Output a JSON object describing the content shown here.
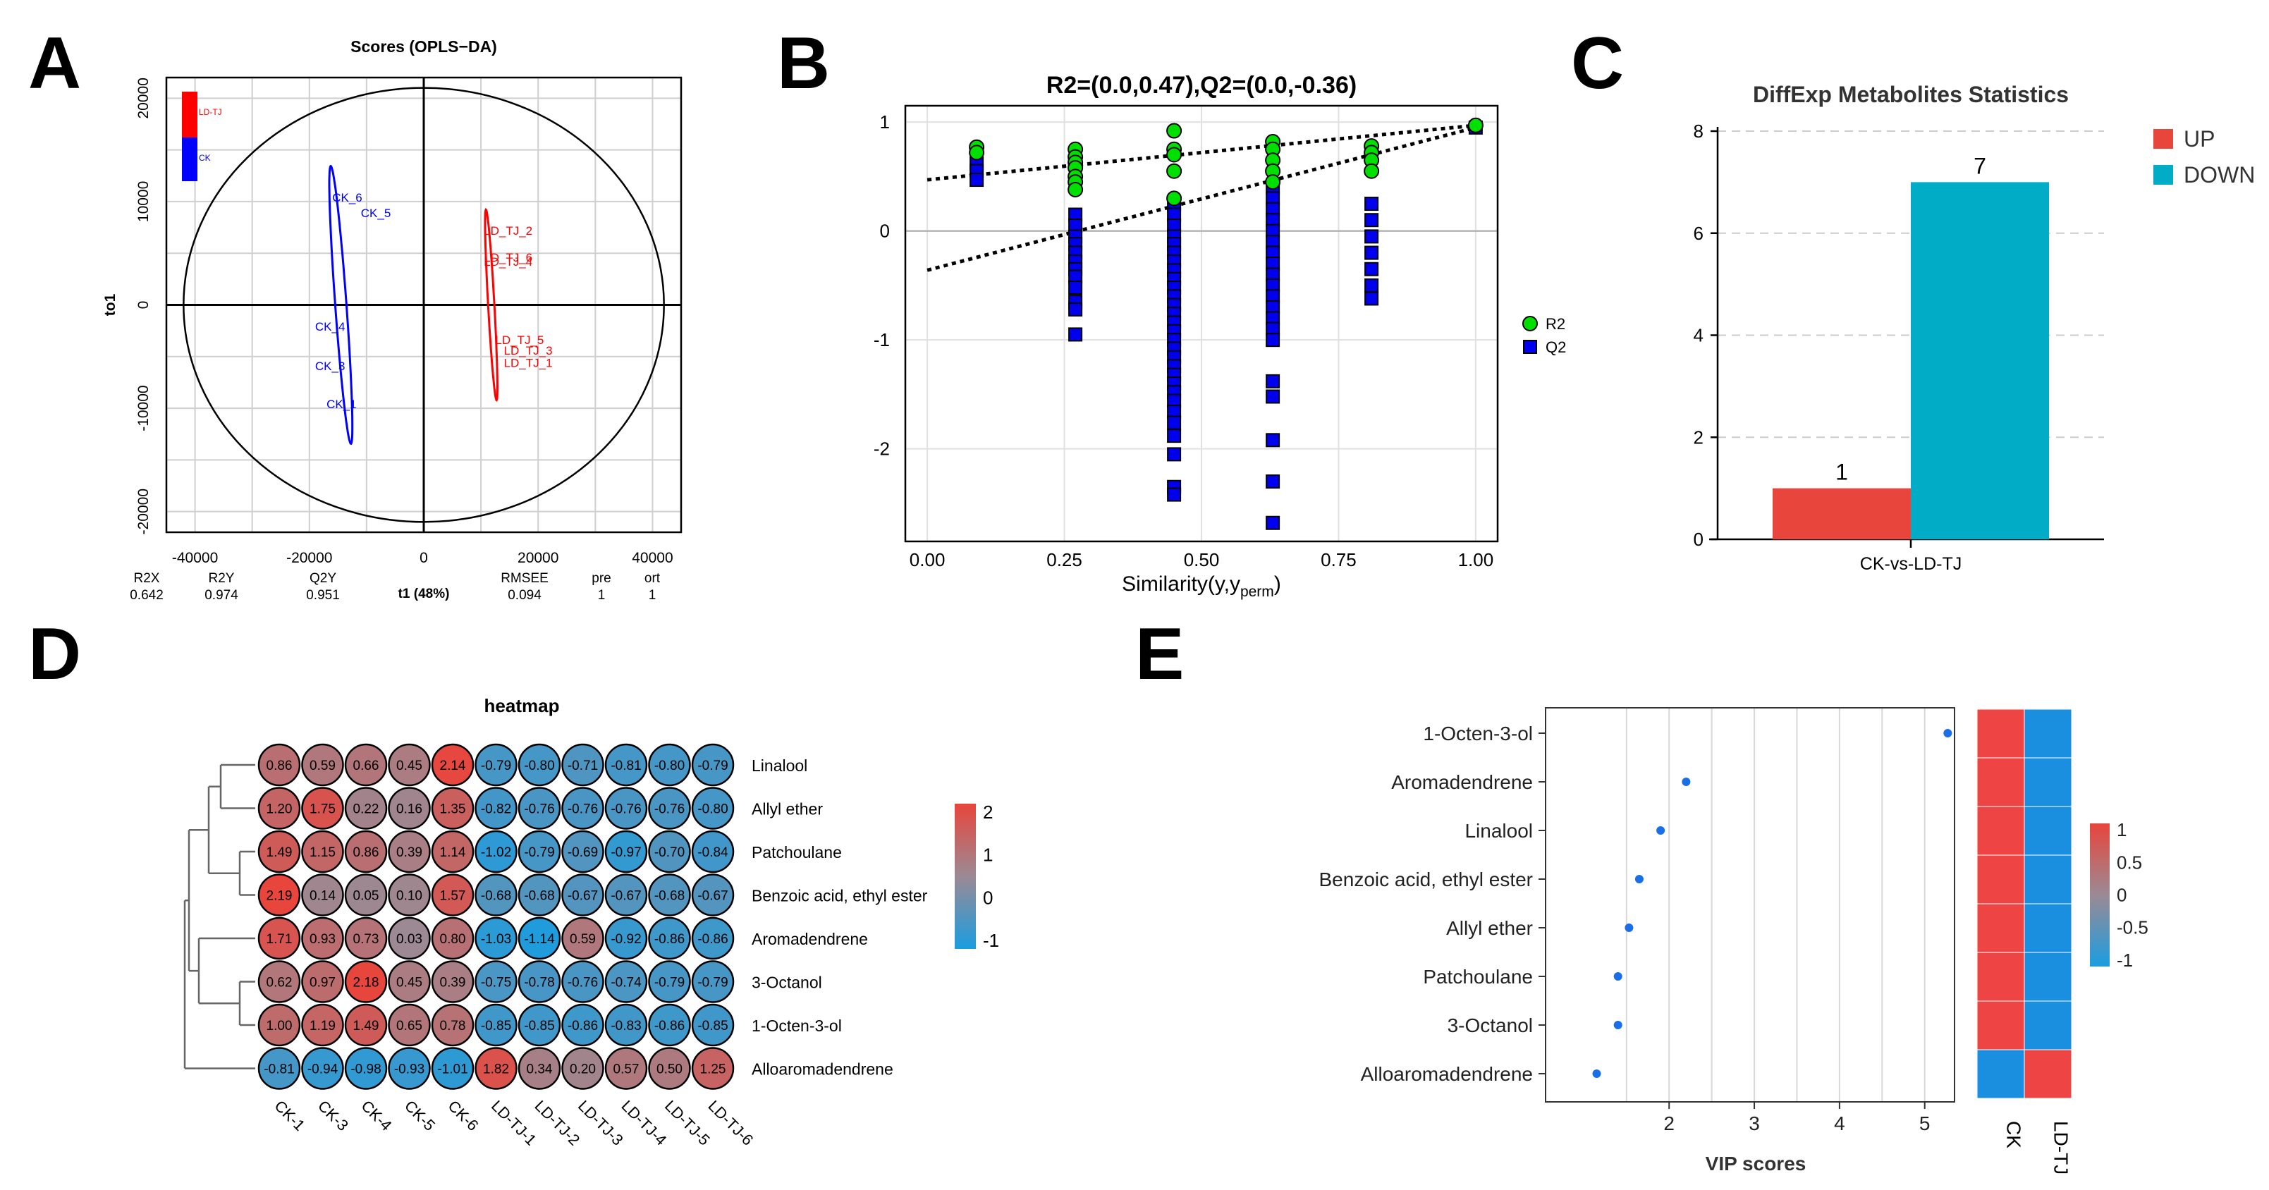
{
  "panel_letters": [
    "A",
    "B",
    "C",
    "D",
    "E"
  ],
  "chart_data": [
    {
      "id": "A",
      "type": "scatter",
      "title": "Scores (OPLS−DA)",
      "xlabel": "t1 (48%)",
      "ylabel": "to1",
      "xlim": [
        -45000,
        45000
      ],
      "ylim": [
        -22000,
        22000
      ],
      "xticks": [
        -40000,
        -20000,
        0,
        20000,
        40000
      ],
      "yticks": [
        -20000,
        -10000,
        0,
        10000,
        20000
      ],
      "grid": true,
      "legend": {
        "placement": "top-left",
        "entries": [
          {
            "name": "LD-TJ",
            "color": "#ff0000"
          },
          {
            "name": "CK",
            "color": "#0000ff"
          }
        ]
      },
      "groups": [
        {
          "name": "CK",
          "color": "#0000ff",
          "points": [
            {
              "label": "CK_6",
              "x": -16000,
              "y": 10000
            },
            {
              "label": "CK_5",
              "x": -11000,
              "y": 8500
            },
            {
              "label": "CK_4",
              "x": -19000,
              "y": -2500
            },
            {
              "label": "CK_3",
              "x": -19000,
              "y": -6300
            },
            {
              "label": "CK_1",
              "x": -17000,
              "y": -10000
            }
          ],
          "ellipse": {
            "cx": -14500,
            "cy": 0,
            "rx": 26500,
            "ry": 3200,
            "angle_deg": -77
          }
        },
        {
          "name": "LD-TJ",
          "color": "#ff0000",
          "points": [
            {
              "label": "LD_TJ_2",
              "x": 10500,
              "y": 6800
            },
            {
              "label": "LD_TJ_6",
              "x": 10500,
              "y": 4200
            },
            {
              "label": "LD_TJ_4",
              "x": 10500,
              "y": 3800
            },
            {
              "label": "LD_TJ_5",
              "x": 12500,
              "y": -3800
            },
            {
              "label": "LD_TJ_3",
              "x": 14000,
              "y": -4800
            },
            {
              "label": "LD_TJ_1",
              "x": 14000,
              "y": -6000
            }
          ],
          "ellipse": {
            "cx": 11800,
            "cy": 0,
            "rx": 18000,
            "ry": 1800,
            "angle_deg": -80
          }
        }
      ],
      "hotelling_ellipse": {
        "cx": 0,
        "cy": 0,
        "rx": 42000,
        "ry": 21000
      },
      "stats": {
        "headers": [
          "R2X",
          "R2Y",
          "Q2Y",
          "RMSEE",
          "pre",
          "ort"
        ],
        "values": [
          "0.642",
          "0.974",
          "0.951",
          "0.094",
          "1",
          "1"
        ]
      }
    },
    {
      "id": "B",
      "type": "scatter",
      "title": "R2=(0.0,0.47),Q2=(0.0,-0.36)",
      "xlabel_main": "Similarity(y,y",
      "xlabel_sub": "perm",
      "xlabel_end": ")",
      "ylabel": "",
      "xlim": [
        -0.04,
        1.04
      ],
      "ylim": [
        -2.85,
        1.15
      ],
      "xticks": [
        0.0,
        0.25,
        0.5,
        0.75,
        1.0
      ],
      "xtick_labels": [
        "0.00",
        "0.25",
        "0.50",
        "0.75",
        "1.00"
      ],
      "yticks": [
        1,
        0,
        -1,
        -2
      ],
      "ytick_labels": [
        "1",
        "0",
        "-1",
        "-2"
      ],
      "grid": true,
      "legend": {
        "placement": "right",
        "entries": [
          {
            "name": "R2",
            "color": "#00e000",
            "shape": "circle"
          },
          {
            "name": "Q2",
            "color": "#0000ee",
            "shape": "square"
          }
        ]
      },
      "regression_lines": [
        {
          "name": "R2",
          "intercept": 0.47,
          "slope": 0.5
        },
        {
          "name": "Q2",
          "intercept": -0.36,
          "slope": 1.31
        }
      ],
      "series": [
        {
          "name": "R2",
          "color": "#00e000",
          "shape": "circle",
          "points": [
            [
              0.09,
              0.77
            ],
            [
              0.09,
              0.72
            ],
            [
              0.27,
              0.75
            ],
            [
              0.27,
              0.68
            ],
            [
              0.27,
              0.63
            ],
            [
              0.27,
              0.58
            ],
            [
              0.27,
              0.5
            ],
            [
              0.27,
              0.45
            ],
            [
              0.27,
              0.38
            ],
            [
              0.45,
              0.92
            ],
            [
              0.45,
              0.75
            ],
            [
              0.45,
              0.7
            ],
            [
              0.45,
              0.55
            ],
            [
              0.45,
              0.3
            ],
            [
              0.63,
              0.82
            ],
            [
              0.63,
              0.75
            ],
            [
              0.63,
              0.65
            ],
            [
              0.63,
              0.55
            ],
            [
              0.63,
              0.45
            ],
            [
              0.81,
              0.78
            ],
            [
              0.81,
              0.72
            ],
            [
              0.81,
              0.65
            ],
            [
              0.81,
              0.55
            ],
            [
              1.0,
              0.97
            ]
          ]
        },
        {
          "name": "Q2",
          "color": "#0000ee",
          "shape": "square",
          "points": [
            [
              0.09,
              0.62
            ],
            [
              0.09,
              0.55
            ],
            [
              0.09,
              0.47
            ],
            [
              0.27,
              0.15
            ],
            [
              0.27,
              0.05
            ],
            [
              0.27,
              -0.05
            ],
            [
              0.27,
              -0.12
            ],
            [
              0.27,
              -0.2
            ],
            [
              0.27,
              -0.28
            ],
            [
              0.27,
              -0.35
            ],
            [
              0.27,
              -0.42
            ],
            [
              0.27,
              -0.52
            ],
            [
              0.27,
              -0.65
            ],
            [
              0.27,
              -0.72
            ],
            [
              0.27,
              -0.95
            ],
            [
              0.45,
              0.25
            ],
            [
              0.45,
              0.15
            ],
            [
              0.45,
              0.05
            ],
            [
              0.45,
              -0.05
            ],
            [
              0.45,
              -0.12
            ],
            [
              0.45,
              -0.2
            ],
            [
              0.45,
              -0.28
            ],
            [
              0.45,
              -0.36
            ],
            [
              0.45,
              -0.44
            ],
            [
              0.45,
              -0.52
            ],
            [
              0.45,
              -0.6
            ],
            [
              0.45,
              -0.68
            ],
            [
              0.45,
              -0.76
            ],
            [
              0.45,
              -0.84
            ],
            [
              0.45,
              -0.92
            ],
            [
              0.45,
              -1.0
            ],
            [
              0.45,
              -1.08
            ],
            [
              0.45,
              -1.16
            ],
            [
              0.45,
              -1.24
            ],
            [
              0.45,
              -1.32
            ],
            [
              0.45,
              -1.4
            ],
            [
              0.45,
              -1.48
            ],
            [
              0.45,
              -1.56
            ],
            [
              0.45,
              -1.66
            ],
            [
              0.45,
              -1.76
            ],
            [
              0.45,
              -1.88
            ],
            [
              0.45,
              -2.05
            ],
            [
              0.45,
              -2.35
            ],
            [
              0.45,
              -2.42
            ],
            [
              0.63,
              0.4
            ],
            [
              0.63,
              0.3
            ],
            [
              0.63,
              0.2
            ],
            [
              0.63,
              0.1
            ],
            [
              0.63,
              0.0
            ],
            [
              0.63,
              -0.1
            ],
            [
              0.63,
              -0.2
            ],
            [
              0.63,
              -0.3
            ],
            [
              0.63,
              -0.4
            ],
            [
              0.63,
              -0.5
            ],
            [
              0.63,
              -0.6
            ],
            [
              0.63,
              -0.7
            ],
            [
              0.63,
              -0.8
            ],
            [
              0.63,
              -0.9
            ],
            [
              0.63,
              -1.0
            ],
            [
              0.63,
              -1.38
            ],
            [
              0.63,
              -1.52
            ],
            [
              0.63,
              -1.92
            ],
            [
              0.63,
              -2.3
            ],
            [
              0.63,
              -2.68
            ],
            [
              0.81,
              0.25
            ],
            [
              0.81,
              0.1
            ],
            [
              0.81,
              -0.05
            ],
            [
              0.81,
              -0.2
            ],
            [
              0.81,
              -0.35
            ],
            [
              0.81,
              -0.5
            ],
            [
              0.81,
              -0.62
            ],
            [
              1.0,
              0.95
            ]
          ]
        }
      ]
    },
    {
      "id": "C",
      "type": "bar",
      "title": "DiffExp Metabolites Statistics",
      "categories": [
        "CK-vs-LD-TJ"
      ],
      "ylim": [
        0,
        8
      ],
      "yticks": [
        0,
        2,
        4,
        6,
        8
      ],
      "grid": true,
      "legend": {
        "placement": "right",
        "entries": [
          {
            "name": "UP",
            "color": "#e8453c"
          },
          {
            "name": "DOWN",
            "color": "#00acc6"
          }
        ]
      },
      "series": [
        {
          "name": "UP",
          "color": "#e8453c",
          "values": [
            1
          ],
          "labels": [
            "1"
          ]
        },
        {
          "name": "DOWN",
          "color": "#00acc6",
          "values": [
            7
          ],
          "labels": [
            "7"
          ]
        }
      ]
    },
    {
      "id": "D",
      "type": "heatmap",
      "title": "heatmap",
      "columns": [
        "CK-1",
        "CK-3",
        "CK-4",
        "CK-5",
        "CK-6",
        "LD-TJ-1",
        "LD-TJ-2",
        "LD-TJ-3",
        "LD-TJ-4",
        "LD-TJ-5",
        "LD-TJ-6"
      ],
      "rows": [
        {
          "name": "Linalool",
          "values": [
            0.86,
            0.59,
            0.66,
            0.45,
            2.14,
            -0.79,
            -0.8,
            -0.71,
            -0.81,
            -0.8,
            -0.79
          ],
          "labels": [
            "0.86",
            "0.59",
            "0.66",
            "0.45",
            "2.14",
            "-0.79",
            "-0.80",
            "-0.71",
            "-0.81",
            "-0.80",
            "-0.79"
          ]
        },
        {
          "name": "Allyl ether",
          "values": [
            1.2,
            1.75,
            0.22,
            0.16,
            1.35,
            -0.82,
            -0.76,
            -0.76,
            -0.76,
            -0.76,
            -0.8
          ],
          "labels": [
            "1.20",
            "1.75",
            "0.22",
            "0.16",
            "1.35",
            "-0.82",
            "-0.76",
            "-0.76",
            "-0.76",
            "-0.76",
            "-0.80"
          ]
        },
        {
          "name": "Patchoulane",
          "values": [
            1.49,
            1.15,
            0.86,
            0.39,
            1.14,
            -1.02,
            -0.79,
            -0.69,
            -0.97,
            -0.7,
            -0.84
          ],
          "labels": [
            "1.49",
            "1.15",
            "0.86",
            "0.39",
            "1.14",
            "-1.02",
            "-0.79",
            "-0.69",
            "-0.97",
            "-0.70",
            "-0.84"
          ]
        },
        {
          "name": "Benzoic acid, ethyl ester",
          "values": [
            2.19,
            0.14,
            0.05,
            0.1,
            1.57,
            -0.68,
            -0.68,
            -0.67,
            -0.67,
            -0.68,
            -0.67
          ],
          "labels": [
            "2.19",
            "0.14",
            "0.05",
            "0.10",
            "1.57",
            "-0.68",
            "-0.68",
            "-0.67",
            "-0.67",
            "-0.68",
            "-0.67"
          ]
        },
        {
          "name": "Aromadendrene",
          "values": [
            1.71,
            0.93,
            0.73,
            0.03,
            0.8,
            -1.03,
            -1.14,
            0.59,
            -0.92,
            -0.86,
            -0.86
          ],
          "labels": [
            "1.71",
            "0.93",
            "0.73",
            "0.03",
            "0.80",
            "-1.03",
            "-1.14",
            "0.59",
            "-0.92",
            "-0.86",
            "-0.86"
          ]
        },
        {
          "name": "3-Octanol",
          "values": [
            0.62,
            0.97,
            2.18,
            0.45,
            0.39,
            -0.75,
            -0.78,
            -0.76,
            -0.74,
            -0.79,
            -0.79
          ],
          "labels": [
            "0.62",
            "0.97",
            "2.18",
            "0.45",
            "0.39",
            "-0.75",
            "-0.78",
            "-0.76",
            "-0.74",
            "-0.79",
            "-0.79"
          ]
        },
        {
          "name": "1-Octen-3-ol",
          "values": [
            1.0,
            1.19,
            1.49,
            0.65,
            0.78,
            -0.85,
            -0.85,
            -0.86,
            -0.83,
            -0.86,
            -0.85
          ],
          "labels": [
            "1.00",
            "1.19",
            "1.49",
            "0.65",
            "0.78",
            "-0.85",
            "-0.85",
            "-0.86",
            "-0.83",
            "-0.86",
            "-0.85"
          ]
        },
        {
          "name": "Alloaromadendrene",
          "values": [
            -0.81,
            -0.94,
            -0.98,
            -0.93,
            -1.01,
            1.82,
            0.34,
            0.2,
            0.57,
            0.5,
            1.25
          ],
          "labels": [
            "-0.81",
            "-0.94",
            "-0.98",
            "-0.93",
            "-1.01",
            "1.82",
            "0.34",
            "0.20",
            "0.57",
            "0.50",
            "1.25"
          ]
        }
      ],
      "colorbar": {
        "ticks": [
          2,
          1,
          0,
          -1
        ],
        "tick_labels": [
          "2",
          "1",
          "0",
          "-1"
        ],
        "low_color": "#1a9de0",
        "mid_color": "#9b8a94",
        "high_color": "#e8453c",
        "range": [
          -1.2,
          2.2
        ]
      }
    },
    {
      "id": "E",
      "type": "scatter",
      "xlabel": "VIP scores",
      "ylabel": "",
      "xlim": [
        0.55,
        5.35
      ],
      "xticks": [
        2,
        3,
        4,
        5
      ],
      "xtick_labels": [
        "2",
        "3",
        "4",
        "5"
      ],
      "grid": true,
      "categories": [
        "1-Octen-3-ol",
        "Aromadendrene",
        "Linalool",
        "Benzoic acid, ethyl ester",
        "Allyl ether",
        "Patchoulane",
        "3-Octanol",
        "Alloaromadendrene"
      ],
      "values": [
        5.27,
        2.2,
        1.9,
        1.65,
        1.53,
        1.4,
        1.4,
        1.15
      ],
      "point_color": "#1a6ee8",
      "side_heatmap": {
        "columns": [
          "CK",
          "LD-TJ"
        ],
        "values": [
          [
            1,
            -1
          ],
          [
            1,
            -1
          ],
          [
            1,
            -1
          ],
          [
            1,
            -1
          ],
          [
            1,
            -1
          ],
          [
            1,
            -1
          ],
          [
            1,
            -1
          ],
          [
            -1,
            1
          ]
        ],
        "low_color": "#1a8fe0",
        "high_color": "#ee4444"
      },
      "colorbar": {
        "ticks": [
          1,
          0.5,
          0,
          -0.5,
          -1
        ],
        "tick_labels": [
          "1",
          "0.5",
          "0",
          "-0.5",
          "-1"
        ],
        "low_color": "#1a9de0",
        "mid_color": "#9b8a94",
        "high_color": "#e8453c"
      }
    }
  ]
}
